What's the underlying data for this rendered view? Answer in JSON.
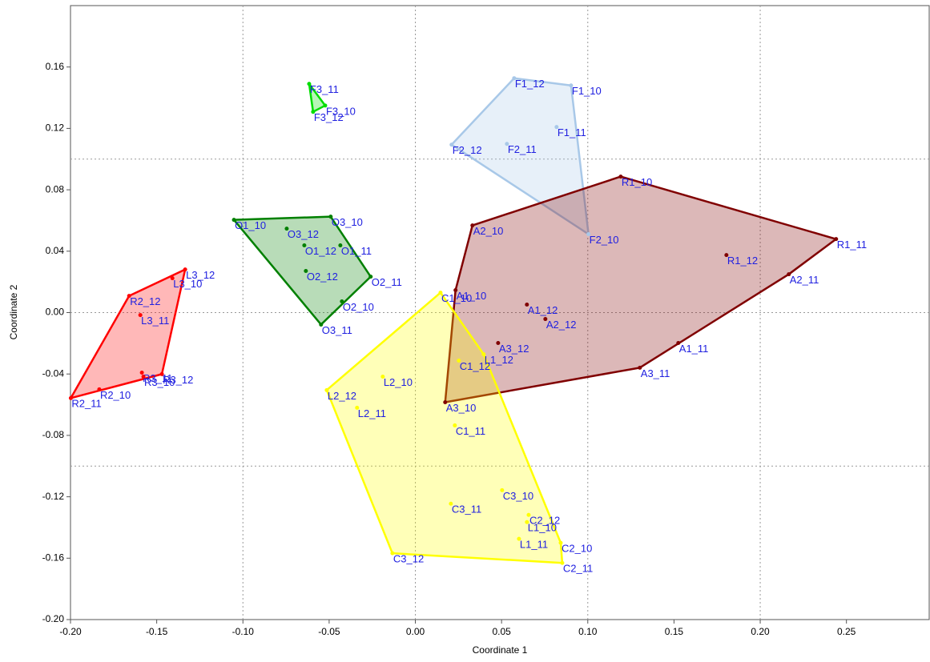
{
  "chart_data": {
    "type": "scatter",
    "xlabel": "Coordinate 1",
    "ylabel": "Coordinate 2",
    "xlim": [
      -0.2,
      0.298
    ],
    "ylim": [
      -0.2,
      0.2
    ],
    "xticks": [
      {
        "value": -0.2,
        "label": "-0.20"
      },
      -0.15,
      {
        "value": -0.1,
        "label": "-0.10"
      },
      -0.05,
      {
        "value": 0,
        "label": "0.00"
      },
      0.05,
      {
        "value": 0.1,
        "label": "0.10"
      },
      0.15,
      {
        "value": 0.2,
        "label": "0.20"
      },
      0.25
    ],
    "yticks": [
      {
        "value": -0.2,
        "label": "-0.20"
      },
      -0.16,
      -0.12,
      -0.08,
      -0.04,
      {
        "value": 0,
        "label": "0.00"
      },
      0.04,
      0.08,
      0.12,
      0.16
    ],
    "grid_x": [
      -0.1,
      0,
      0.1,
      0.2
    ],
    "grid_y": [
      -0.1,
      0,
      0.1
    ],
    "convex_hulls": true,
    "series": [
      {
        "color": "#00dd00",
        "labels": [
          "F3_11",
          "F3_10",
          "F3_12"
        ],
        "x": [
          -0.0616,
          -0.0523,
          -0.0593
        ],
        "y": [
          0.149,
          0.1349,
          0.1308
        ]
      },
      {
        "color": "#a8c8e8",
        "labels": [
          "F1_12",
          "F1_10",
          "F1_11",
          "F2_11",
          "F2_12",
          "F2_10"
        ],
        "x": [
          0.0573,
          0.0903,
          0.0819,
          0.0531,
          0.021,
          0.1004
        ],
        "y": [
          0.1527,
          0.148,
          0.1209,
          0.1099,
          0.1094,
          0.0511
        ]
      },
      {
        "color": "#800000",
        "labels": [
          "R1_10",
          "R1_11",
          "R1_12",
          "A2_11",
          "A1_11",
          "A3_11",
          "A3_10",
          "A1_10",
          "A2_10",
          "A1_12",
          "A2_12",
          "A3_12"
        ],
        "x": [
          0.1191,
          0.244,
          0.1804,
          0.2166,
          0.1525,
          0.1302,
          0.0173,
          0.0233,
          0.0331,
          0.0647,
          0.0754,
          0.048
        ],
        "y": [
          0.0886,
          0.0479,
          0.0375,
          0.025,
          -0.0198,
          -0.0359,
          -0.0584,
          0.0146,
          0.0568,
          0.0052,
          -0.0042,
          -0.0198
        ]
      },
      {
        "color": "#ffff00",
        "labels": [
          "C1_10",
          "C1_12",
          "L1_12",
          "L2_10",
          "L2_12",
          "L2_11",
          "C1_11",
          "C3_10",
          "C3_11",
          "C2_12",
          "L1_10",
          "L1_11",
          "C2_10",
          "C2_11",
          "C3_12"
        ],
        "x": [
          0.0146,
          0.0252,
          0.0396,
          -0.0189,
          -0.0514,
          -0.0338,
          0.0229,
          0.0503,
          0.0206,
          0.0657,
          0.0647,
          0.0601,
          0.0843,
          0.0852,
          -0.0133
        ],
        "y": [
          0.013,
          -0.0313,
          -0.0271,
          -0.0417,
          -0.0505,
          -0.062,
          -0.0735,
          -0.1157,
          -0.1245,
          -0.1318,
          -0.1365,
          -0.1474,
          -0.15,
          -0.1631,
          -0.1568
        ]
      },
      {
        "color": "#008000",
        "labels": [
          "O1_10",
          "O3_10",
          "O3_12",
          "O1_12",
          "O1_11",
          "O2_12",
          "O2_11",
          "O2_10",
          "O3_11"
        ],
        "x": [
          -0.1052,
          -0.0491,
          -0.0746,
          -0.0644,
          -0.0435,
          -0.0635,
          -0.0259,
          -0.0426,
          -0.0547
        ],
        "y": [
          0.0604,
          0.0625,
          0.0547,
          0.0438,
          0.0438,
          0.0271,
          0.0234,
          0.0073,
          -0.0078
        ]
      },
      {
        "color": "#ff0000",
        "labels": [
          "L3_12",
          "L3_10",
          "R2_12",
          "L3_11",
          "R3_11",
          "R3_10",
          "R3_12",
          "R2_10",
          "R2_11"
        ],
        "x": [
          -0.1335,
          -0.1409,
          -0.166,
          -0.1595,
          -0.1586,
          -0.1577,
          -0.147,
          -0.1833,
          -0.1998
        ],
        "y": [
          0.0281,
          0.0224,
          0.0109,
          -0.0016,
          -0.0391,
          -0.0417,
          -0.0401,
          -0.05,
          -0.0557
        ]
      }
    ]
  }
}
